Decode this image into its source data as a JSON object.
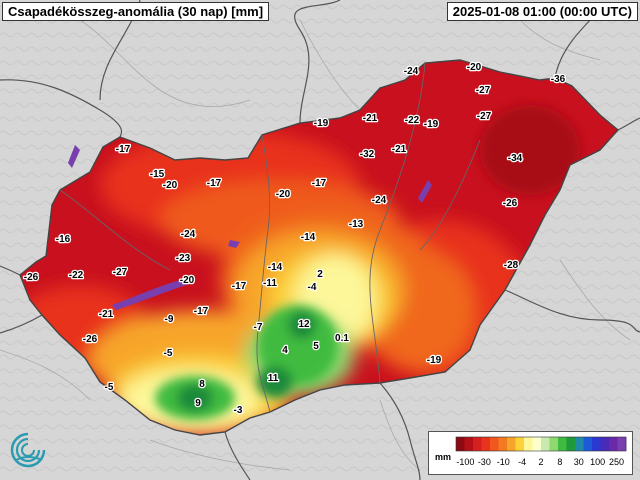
{
  "header": {
    "title": "Csapadékösszeg-anomália (30 nap) [mm]",
    "timestamp": "2025-01-08 01:00 (00:00 UTC)"
  },
  "colors": {
    "background": "#d9d9d9",
    "very_dry": "#c8101e",
    "dry": "#e8331e",
    "moderately_dry": "#f0681e",
    "slightly_dry": "#f7a52a",
    "near_normal": "#fdf79a",
    "wet": "#3fbb3f",
    "very_wet": "#1e8a3a",
    "lakes": "#7a3fae",
    "borders": "#555555"
  },
  "map_labels": [
    {
      "text": "-20"
    },
    {
      "text": "-24"
    },
    {
      "text": "-27"
    },
    {
      "text": "-36"
    },
    {
      "text": "-19"
    },
    {
      "text": "-21"
    },
    {
      "text": "-22"
    },
    {
      "text": "-19"
    },
    {
      "text": "-27"
    },
    {
      "text": "-17"
    },
    {
      "text": "-32"
    },
    {
      "text": "-21"
    },
    {
      "text": "-34"
    },
    {
      "text": "-15"
    },
    {
      "text": "-20"
    },
    {
      "text": "-17"
    },
    {
      "text": "-20"
    },
    {
      "text": "-17"
    },
    {
      "text": "-24"
    },
    {
      "text": "-26"
    },
    {
      "text": "-16"
    },
    {
      "text": "-24"
    },
    {
      "text": "-14"
    },
    {
      "text": "-13"
    },
    {
      "text": "-22"
    },
    {
      "text": "-27"
    },
    {
      "text": "-23"
    },
    {
      "text": "-14"
    },
    {
      "text": "2"
    },
    {
      "text": "-28"
    },
    {
      "text": "-26"
    },
    {
      "text": "-20"
    },
    {
      "text": "-17"
    },
    {
      "text": "-11"
    },
    {
      "text": "-4"
    },
    {
      "text": "-21"
    },
    {
      "text": "-9"
    },
    {
      "text": "-17"
    },
    {
      "text": "-7"
    },
    {
      "text": "12"
    },
    {
      "text": "-26"
    },
    {
      "text": "0.1"
    },
    {
      "text": "5"
    },
    {
      "text": "-5"
    },
    {
      "text": "4"
    },
    {
      "text": "-19"
    },
    {
      "text": "-5"
    },
    {
      "text": "8"
    },
    {
      "text": "11"
    },
    {
      "text": "9"
    },
    {
      "text": "-3"
    }
  ],
  "legend": {
    "unit": "mm",
    "ticks": [
      "-100",
      "-30",
      "-10",
      "-4",
      "2",
      "8",
      "30",
      "100",
      "250"
    ],
    "colors": [
      "#8b0a14",
      "#b5101a",
      "#d4201e",
      "#e8331e",
      "#f0581e",
      "#f27a22",
      "#f7a52a",
      "#fbd23a",
      "#fdf79a",
      "#ffffcc",
      "#c8eab0",
      "#8fd870",
      "#3fbb3f",
      "#1e9a3a",
      "#1e8aa8",
      "#1e5ad8",
      "#2a3ad0",
      "#4a2ab8",
      "#6a2aa8",
      "#7a3fae"
    ]
  }
}
